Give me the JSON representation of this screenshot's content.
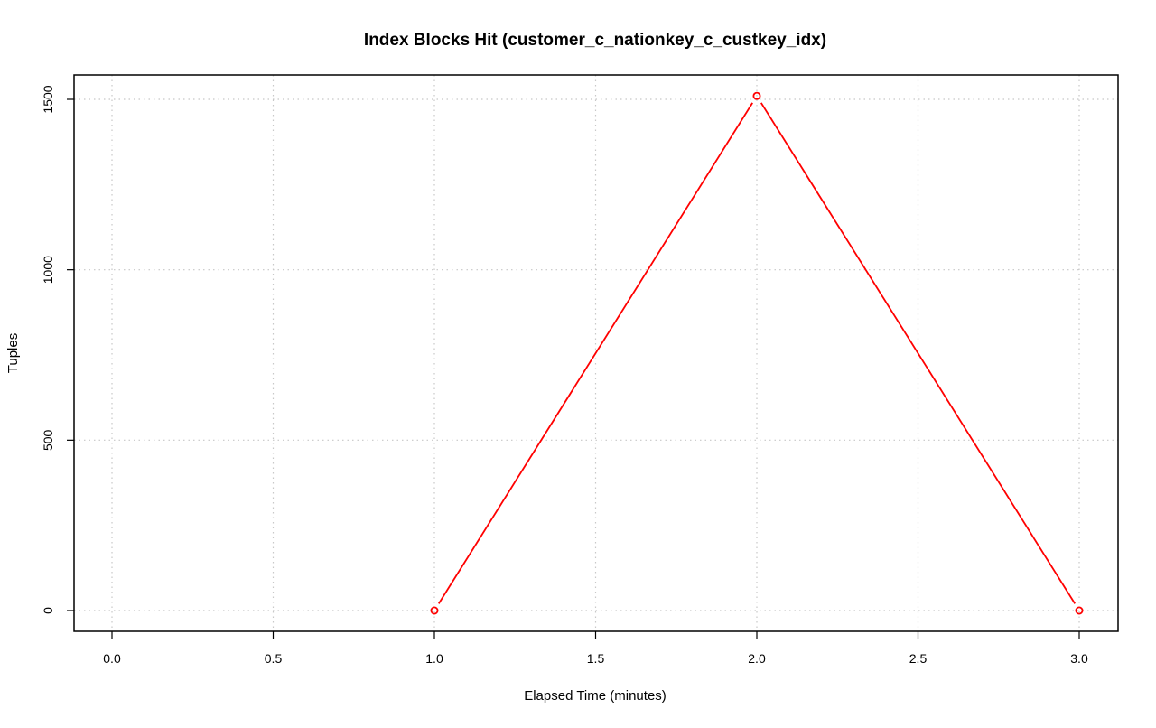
{
  "chart_data": {
    "type": "line",
    "title": "Index Blocks Hit (customer_c_nationkey_c_custkey_idx)",
    "xlabel": "Elapsed Time (minutes)",
    "ylabel": "Tuples",
    "xlim": [
      0.0,
      3.0
    ],
    "ylim": [
      0,
      1500
    ],
    "x_ticks": [
      "0.0",
      "0.5",
      "1.0",
      "1.5",
      "2.0",
      "2.5",
      "3.0"
    ],
    "y_ticks": [
      "0",
      "500",
      "1000",
      "1500"
    ],
    "grid": true,
    "legend": "none",
    "series": [
      {
        "x": [
          1.0,
          2.0,
          3.0
        ],
        "y": [
          0,
          1510,
          0
        ],
        "color": "#ff0000",
        "marker": "open-circle"
      }
    ]
  }
}
